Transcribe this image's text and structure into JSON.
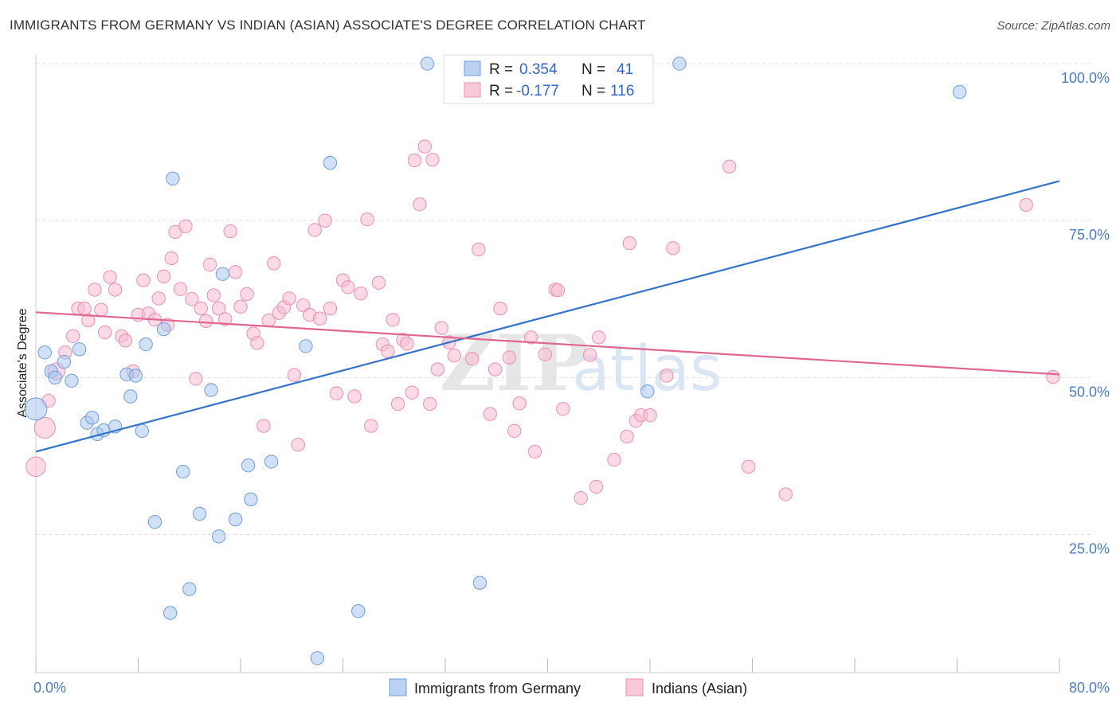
{
  "header": {
    "title": "IMMIGRANTS FROM GERMANY VS INDIAN (ASIAN) ASSOCIATE'S DEGREE CORRELATION CHART",
    "source": "Source: ZipAtlas.com"
  },
  "watermark": {
    "zip": "ZIP",
    "atlas": "atlas"
  },
  "legend": {
    "r_label": "R =",
    "n_label": "N =",
    "series": [
      {
        "r": "0.354",
        "n": "41"
      },
      {
        "r": "-0.177",
        "n": "116"
      }
    ]
  },
  "colors": {
    "germany_fill": "#a9c7ee",
    "germany_stroke": "#6d9ee0",
    "germany_line": "#3373cc",
    "indian_fill": "#f7bccf",
    "indian_stroke": "#ec8fae",
    "indian_line": "#e06690"
  },
  "chart_data": {
    "type": "scatter",
    "title": "IMMIGRANTS FROM GERMANY VS INDIAN (ASIAN) ASSOCIATE'S DEGREE CORRELATION CHART",
    "xlabel": "",
    "ylabel": "Associate's Degree",
    "xlim": [
      0,
      80
    ],
    "ylim": [
      3,
      100
    ],
    "x_tick_labels": [
      "0.0%",
      "80.0%"
    ],
    "y_ticks": [
      25,
      50,
      75,
      100
    ],
    "y_tick_labels": [
      "25.0%",
      "50.0%",
      "75.0%",
      "100.0%"
    ],
    "grid": true,
    "legend_position": "top-center",
    "series": [
      {
        "name": "Immigrants from Germany",
        "r": 0.354,
        "n": 41,
        "trend": [
          [
            0,
            38.2
          ],
          [
            80,
            81.3
          ]
        ],
        "points": [
          [
            0.0,
            45.0,
            1.7
          ],
          [
            0.7,
            54.0,
            1
          ],
          [
            1.2,
            51.0,
            1
          ],
          [
            1.5,
            50.0,
            1
          ],
          [
            2.2,
            52.5,
            1
          ],
          [
            2.8,
            49.5,
            1
          ],
          [
            3.4,
            54.5,
            1
          ],
          [
            4.0,
            42.8,
            1
          ],
          [
            4.4,
            43.6,
            1
          ],
          [
            4.8,
            41.0,
            1
          ],
          [
            5.3,
            41.6,
            1
          ],
          [
            6.2,
            42.2,
            1
          ],
          [
            7.1,
            50.5,
            1
          ],
          [
            7.4,
            47.0,
            1
          ],
          [
            7.8,
            50.3,
            1
          ],
          [
            8.3,
            41.5,
            1
          ],
          [
            8.6,
            55.3,
            1
          ],
          [
            9.3,
            27.0,
            1
          ],
          [
            10.0,
            57.7,
            1
          ],
          [
            10.5,
            12.5,
            1
          ],
          [
            10.7,
            81.7,
            1
          ],
          [
            11.5,
            35.0,
            1
          ],
          [
            12.0,
            16.3,
            1
          ],
          [
            12.8,
            28.3,
            1
          ],
          [
            13.7,
            48.0,
            1
          ],
          [
            14.3,
            24.7,
            1
          ],
          [
            14.6,
            66.5,
            1
          ],
          [
            15.6,
            27.4,
            1
          ],
          [
            16.6,
            36.0,
            1
          ],
          [
            16.8,
            30.6,
            1
          ],
          [
            18.4,
            36.6,
            1
          ],
          [
            21.1,
            55.0,
            1
          ],
          [
            22.0,
            5.3,
            1
          ],
          [
            23.0,
            84.2,
            1
          ],
          [
            25.2,
            12.8,
            1
          ],
          [
            30.6,
            100.0,
            1
          ],
          [
            34.7,
            17.3,
            1
          ],
          [
            47.8,
            47.8,
            1
          ],
          [
            50.3,
            100.0,
            1
          ],
          [
            72.2,
            95.5,
            1
          ]
        ]
      },
      {
        "name": "Indians (Asian)",
        "r": -0.177,
        "n": 116,
        "trend": [
          [
            0,
            60.4
          ],
          [
            80,
            50.5
          ]
        ],
        "points": [
          [
            0.0,
            35.8,
            1.5
          ],
          [
            0.7,
            42.0,
            1.6
          ],
          [
            1.0,
            46.3,
            1
          ],
          [
            1.6,
            51.0,
            1.3
          ],
          [
            2.3,
            54.0,
            1
          ],
          [
            2.9,
            56.6,
            1
          ],
          [
            3.3,
            61.0,
            1
          ],
          [
            3.8,
            61.0,
            1
          ],
          [
            4.1,
            59.1,
            1
          ],
          [
            4.6,
            64.0,
            1
          ],
          [
            5.1,
            60.8,
            1
          ],
          [
            5.4,
            57.2,
            1
          ],
          [
            5.8,
            66.0,
            1
          ],
          [
            6.2,
            64.0,
            1
          ],
          [
            6.7,
            56.6,
            1
          ],
          [
            7.0,
            55.9,
            1
          ],
          [
            7.6,
            51.0,
            1
          ],
          [
            8.0,
            60.0,
            1
          ],
          [
            8.4,
            65.5,
            1
          ],
          [
            8.8,
            60.2,
            1
          ],
          [
            9.3,
            59.2,
            1
          ],
          [
            9.6,
            62.6,
            1
          ],
          [
            10.0,
            66.1,
            1
          ],
          [
            10.3,
            58.4,
            1
          ],
          [
            10.6,
            69.0,
            1
          ],
          [
            10.9,
            73.2,
            1
          ],
          [
            11.3,
            64.1,
            1
          ],
          [
            11.7,
            74.1,
            1
          ],
          [
            12.2,
            62.5,
            1
          ],
          [
            12.5,
            49.8,
            1
          ],
          [
            12.9,
            61.0,
            1
          ],
          [
            13.3,
            59.0,
            1
          ],
          [
            13.6,
            68.0,
            1
          ],
          [
            13.9,
            63.1,
            1
          ],
          [
            14.3,
            61.0,
            1
          ],
          [
            14.8,
            59.3,
            1
          ],
          [
            15.2,
            73.3,
            1
          ],
          [
            15.6,
            66.8,
            1
          ],
          [
            16.0,
            61.3,
            1
          ],
          [
            16.5,
            63.3,
            1
          ],
          [
            17.0,
            57.0,
            1
          ],
          [
            17.3,
            55.5,
            1
          ],
          [
            17.8,
            42.3,
            1
          ],
          [
            18.2,
            59.1,
            1
          ],
          [
            18.6,
            68.2,
            1
          ],
          [
            19.0,
            60.3,
            1
          ],
          [
            19.4,
            61.2,
            1
          ],
          [
            19.8,
            62.6,
            1
          ],
          [
            20.2,
            50.4,
            1
          ],
          [
            20.5,
            39.3,
            1
          ],
          [
            20.9,
            61.5,
            1
          ],
          [
            21.4,
            60.0,
            1
          ],
          [
            21.8,
            73.5,
            1
          ],
          [
            22.2,
            59.4,
            1
          ],
          [
            22.6,
            75.0,
            1
          ],
          [
            23.0,
            61.0,
            1
          ],
          [
            23.5,
            47.5,
            1
          ],
          [
            24.0,
            65.5,
            1
          ],
          [
            24.4,
            64.4,
            1
          ],
          [
            24.9,
            47.0,
            1
          ],
          [
            25.4,
            63.4,
            1
          ],
          [
            25.9,
            75.2,
            1
          ],
          [
            26.2,
            42.3,
            1
          ],
          [
            26.8,
            65.1,
            1
          ],
          [
            27.1,
            55.3,
            1
          ],
          [
            27.5,
            54.2,
            1
          ],
          [
            27.9,
            59.2,
            1
          ],
          [
            28.3,
            45.8,
            1
          ],
          [
            28.7,
            56.0,
            1
          ],
          [
            29.0,
            55.4,
            1
          ],
          [
            29.4,
            47.6,
            1
          ],
          [
            29.6,
            84.6,
            1
          ],
          [
            30.0,
            77.6,
            1
          ],
          [
            30.4,
            86.8,
            1
          ],
          [
            30.8,
            45.8,
            1
          ],
          [
            31.0,
            84.7,
            1
          ],
          [
            31.4,
            51.3,
            1
          ],
          [
            31.7,
            57.9,
            1
          ],
          [
            32.3,
            55.6,
            1
          ],
          [
            32.7,
            53.5,
            1
          ],
          [
            34.1,
            53.0,
            1
          ],
          [
            34.6,
            70.4,
            1
          ],
          [
            35.5,
            44.2,
            1
          ],
          [
            35.9,
            51.3,
            1
          ],
          [
            36.3,
            61.0,
            1
          ],
          [
            37.0,
            53.2,
            1
          ],
          [
            37.4,
            41.5,
            1
          ],
          [
            37.8,
            45.9,
            1
          ],
          [
            38.7,
            56.4,
            1
          ],
          [
            39.0,
            38.2,
            1
          ],
          [
            39.8,
            53.7,
            1
          ],
          [
            40.6,
            64.0,
            1
          ],
          [
            40.8,
            63.9,
            1
          ],
          [
            41.2,
            45.0,
            1
          ],
          [
            42.6,
            30.8,
            1
          ],
          [
            43.3,
            53.6,
            1
          ],
          [
            43.8,
            32.6,
            1
          ],
          [
            44.0,
            56.4,
            1
          ],
          [
            45.2,
            36.9,
            1
          ],
          [
            46.2,
            40.6,
            1
          ],
          [
            46.4,
            71.4,
            1
          ],
          [
            46.9,
            43.1,
            1
          ],
          [
            47.3,
            44.0,
            1
          ],
          [
            48.0,
            44.0,
            1
          ],
          [
            49.3,
            50.3,
            1
          ],
          [
            49.8,
            70.6,
            1
          ],
          [
            54.2,
            83.6,
            1
          ],
          [
            55.7,
            35.8,
            1
          ],
          [
            58.6,
            31.4,
            1
          ],
          [
            77.4,
            77.5,
            1
          ],
          [
            79.5,
            50.1,
            1
          ]
        ]
      }
    ]
  },
  "bottom_legend": {
    "items": [
      {
        "label": "Immigrants from Germany"
      },
      {
        "label": "Indians (Asian)"
      }
    ]
  }
}
